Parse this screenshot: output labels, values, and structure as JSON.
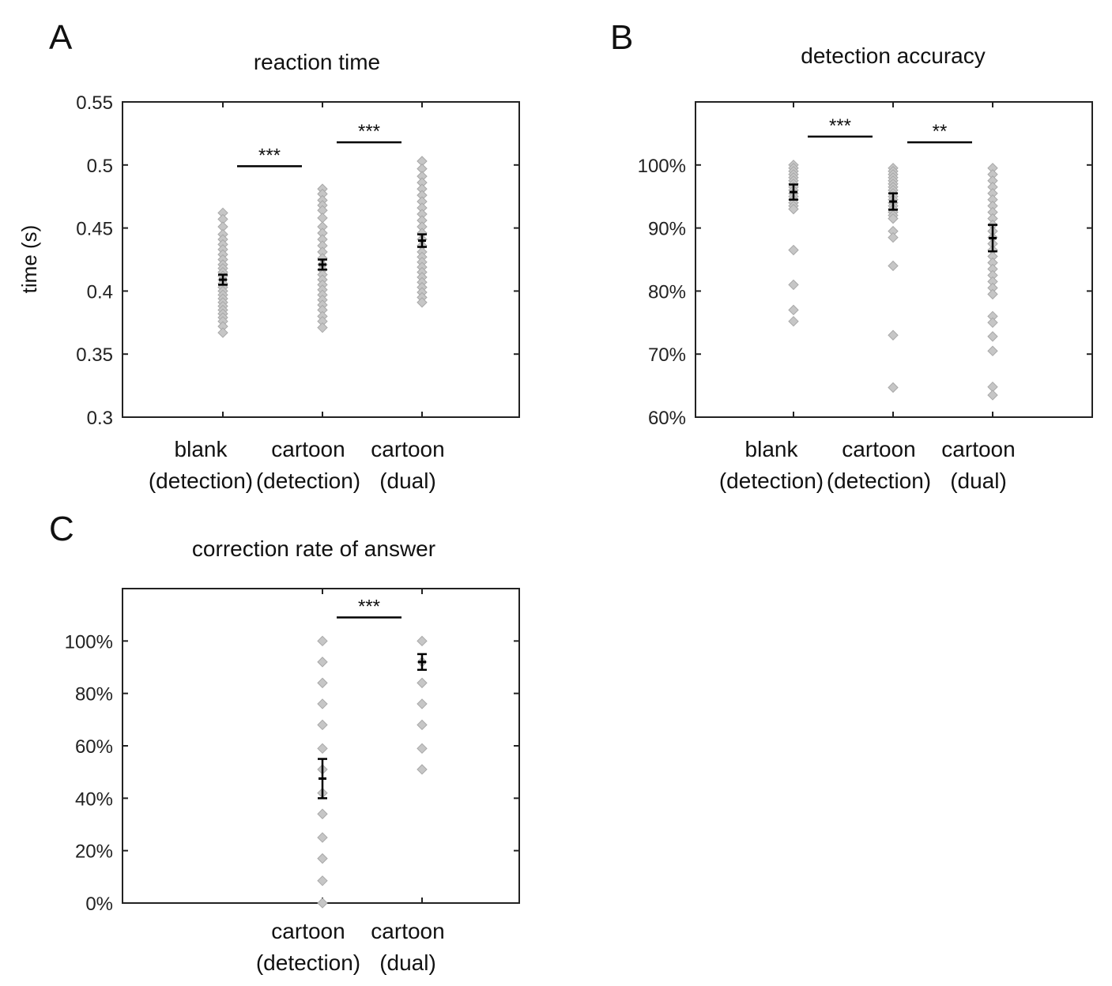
{
  "panels": [
    {
      "letter": "A",
      "title": "reaction time",
      "ylabel": "time (s)",
      "type": "scatter",
      "ylim": [
        0.3,
        0.55
      ],
      "yticks": [
        0.3,
        0.35,
        0.4,
        0.45,
        0.5,
        0.55
      ],
      "ytick_labels": [
        "0.3",
        "0.35",
        "0.4",
        "0.45",
        "0.5",
        "0.55"
      ],
      "categories": [
        {
          "line1": "blank",
          "line2": "(detection)"
        },
        {
          "line1": "cartoon",
          "line2": "(detection)"
        },
        {
          "line1": "cartoon",
          "line2": "(dual)"
        }
      ],
      "points": [
        [
          0.462,
          0.457,
          0.451,
          0.445,
          0.441,
          0.437,
          0.433,
          0.429,
          0.425,
          0.421,
          0.418,
          0.415,
          0.412,
          0.409,
          0.406,
          0.403,
          0.4,
          0.397,
          0.394,
          0.391,
          0.388,
          0.385,
          0.382,
          0.379,
          0.376,
          0.372,
          0.367
        ],
        [
          0.481,
          0.477,
          0.472,
          0.468,
          0.464,
          0.458,
          0.451,
          0.446,
          0.441,
          0.436,
          0.431,
          0.426,
          0.421,
          0.417,
          0.413,
          0.409,
          0.405,
          0.401,
          0.397,
          0.393,
          0.389,
          0.385,
          0.38,
          0.376,
          0.371
        ],
        [
          0.503,
          0.497,
          0.491,
          0.486,
          0.481,
          0.476,
          0.471,
          0.466,
          0.461,
          0.456,
          0.451,
          0.446,
          0.441,
          0.436,
          0.431,
          0.427,
          0.423,
          0.419,
          0.415,
          0.411,
          0.407,
          0.403,
          0.399,
          0.395,
          0.391
        ]
      ],
      "means": [
        0.409,
        0.421,
        0.44
      ],
      "errors": [
        0.004,
        0.004,
        0.005
      ],
      "significance": [
        {
          "from": 0,
          "to": 1,
          "y": 0.499,
          "label": "***"
        },
        {
          "from": 1,
          "to": 2,
          "y": 0.518,
          "label": "***"
        }
      ]
    },
    {
      "letter": "B",
      "title": "detection accuracy",
      "ylabel": "",
      "type": "scatter",
      "ylim": [
        60,
        110
      ],
      "yticks": [
        60,
        70,
        80,
        90,
        100
      ],
      "ytick_labels": [
        "60%",
        "70%",
        "80%",
        "90%",
        "100%"
      ],
      "categories": [
        {
          "line1": "blank",
          "line2": "(detection)"
        },
        {
          "line1": "cartoon",
          "line2": "(detection)"
        },
        {
          "line1": "cartoon",
          "line2": "(dual)"
        }
      ],
      "points": [
        [
          100,
          99.5,
          99,
          98.5,
          98,
          97.5,
          97,
          96.5,
          96,
          95.5,
          95,
          94.5,
          94,
          93.5,
          93,
          86.5,
          81,
          77,
          75.2
        ],
        [
          99.5,
          99,
          98.5,
          98,
          97.5,
          97,
          96.5,
          96,
          95.5,
          95,
          94.5,
          94,
          93.5,
          93,
          92.5,
          92,
          91.5,
          89.5,
          88.5,
          84,
          73,
          64.7
        ],
        [
          99.5,
          98.5,
          97.5,
          96.5,
          95.5,
          94.5,
          93.5,
          92.5,
          91.5,
          90.5,
          89.5,
          88.5,
          87.5,
          86.5,
          85.5,
          84.5,
          83.5,
          82.5,
          81.5,
          80.5,
          79.5,
          76,
          75,
          72.8,
          70.5,
          64.8,
          63.5
        ]
      ],
      "means": [
        95.7,
        94.2,
        88.4
      ],
      "errors": [
        1.2,
        1.3,
        2.1
      ],
      "significance": [
        {
          "from": 0,
          "to": 1,
          "y": 104.5,
          "label": "***"
        },
        {
          "from": 1,
          "to": 2,
          "y": 103.6,
          "label": "**"
        }
      ]
    },
    {
      "letter": "C",
      "title": "correction rate of answer",
      "ylabel": "",
      "type": "scatter",
      "ylim": [
        0,
        120
      ],
      "yticks": [
        0,
        20,
        40,
        60,
        80,
        100
      ],
      "ytick_labels": [
        "0%",
        "20%",
        "40%",
        "60%",
        "80%",
        "100%"
      ],
      "categories": [
        {
          "line1": "",
          "line2": ""
        },
        {
          "line1": "cartoon",
          "line2": "(detection)"
        },
        {
          "line1": "cartoon",
          "line2": "(dual)"
        }
      ],
      "points": [
        [],
        [
          100,
          92,
          84,
          76,
          68,
          59,
          51,
          42,
          34,
          25,
          17,
          8.5,
          0
        ],
        [
          100,
          92,
          84,
          76,
          68,
          59,
          51
        ]
      ],
      "means": [
        null,
        47.5,
        92
      ],
      "errors": [
        null,
        7.5,
        3
      ],
      "significance": [
        {
          "from": 1,
          "to": 2,
          "y": 109,
          "label": "***"
        }
      ]
    }
  ],
  "style": {
    "marker_fill": "#c6c6c6",
    "marker_stroke": "#a8a8a8",
    "axis_color": "#222222",
    "mean_color": "#000000"
  },
  "chart_data": [
    {
      "type": "scatter",
      "title": "reaction time",
      "xlabel": "",
      "ylabel": "time (s)",
      "categories": [
        "blank (detection)",
        "cartoon (detection)",
        "cartoon (dual)"
      ],
      "ylim": [
        0.3,
        0.55
      ],
      "series": [
        {
          "values": [
            0.409,
            0.421,
            0.44
          ]
        }
      ],
      "error_bars": [
        0.004,
        0.004,
        0.005
      ],
      "annotations": [
        "***",
        "***"
      ]
    },
    {
      "type": "scatter",
      "title": "detection accuracy",
      "xlabel": "",
      "ylabel": "",
      "categories": [
        "blank (detection)",
        "cartoon (detection)",
        "cartoon (dual)"
      ],
      "ylim": [
        60,
        110
      ],
      "series": [
        {
          "values": [
            95.7,
            94.2,
            88.4
          ]
        }
      ],
      "error_bars": [
        1.2,
        1.3,
        2.1
      ],
      "annotations": [
        "***",
        "**"
      ]
    },
    {
      "type": "scatter",
      "title": "correction rate of answer",
      "xlabel": "",
      "ylabel": "",
      "categories": [
        "cartoon (detection)",
        "cartoon (dual)"
      ],
      "ylim": [
        0,
        120
      ],
      "series": [
        {
          "values": [
            47.5,
            92
          ]
        }
      ],
      "error_bars": [
        7.5,
        3
      ],
      "annotations": [
        "***"
      ]
    }
  ]
}
